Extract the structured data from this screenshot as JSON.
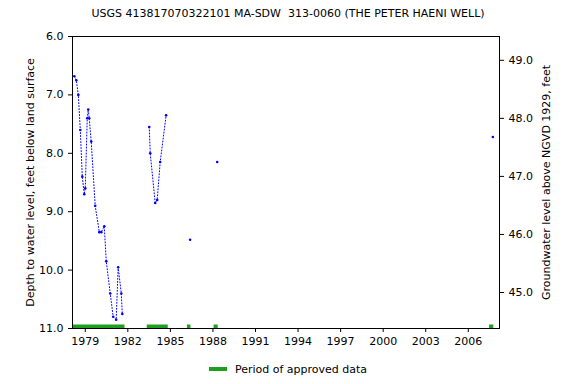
{
  "chart_data": {
    "type": "line",
    "title": "USGS 413817070322101 MA-SDW  313-0060 (THE PETER HAENI WELL)",
    "ylabel": "Depth to water level, feet below land surface",
    "y2label": "Groundwater level above NGVD 1929, feet",
    "x": [
      1978.23,
      1978.37,
      1978.51,
      1978.65,
      1978.79,
      1978.93,
      1979.0,
      1979.14,
      1979.21,
      1979.28,
      1979.42,
      1979.7,
      1979.99,
      1980.13,
      1980.34,
      1980.48,
      1980.76,
      1980.97,
      1981.18,
      1981.32,
      1981.54,
      1981.61,
      null,
      1983.51,
      1983.58,
      1983.93,
      1984.07,
      1984.28,
      1984.7,
      null,
      1986.39,
      null,
      1988.3,
      null,
      2007.73
    ],
    "values": [
      6.68,
      6.75,
      7.0,
      7.6,
      8.4,
      8.7,
      8.6,
      7.4,
      7.25,
      7.4,
      7.8,
      8.9,
      9.35,
      9.35,
      9.25,
      9.85,
      10.4,
      10.8,
      10.85,
      9.95,
      10.4,
      10.75,
      null,
      7.55,
      8.0,
      8.85,
      8.8,
      8.15,
      7.35,
      null,
      9.48,
      null,
      8.15,
      null,
      7.72
    ],
    "color": "#0000ff",
    "marker": "dot",
    "line_style": "dotted",
    "approved_periods": {
      "name": "Period of approved data",
      "color": "#1ea01e",
      "ranges": [
        [
          1978.08,
          1981.8
        ],
        [
          1983.37,
          1984.85
        ],
        [
          1986.2,
          1986.45
        ],
        [
          1988.08,
          1988.37
        ],
        [
          2007.5,
          2007.8
        ]
      ]
    },
    "xlim": [
      1978.1,
      2008.2
    ],
    "xticks": [
      1979,
      1982,
      1985,
      1988,
      1991,
      1994,
      1997,
      2000,
      2003,
      2006
    ],
    "ylim": [
      6,
      11
    ],
    "yticks": [
      {
        "value": 6,
        "label": "6.0"
      },
      {
        "value": 7,
        "label": "7.0"
      },
      {
        "value": 8,
        "label": "8.0"
      },
      {
        "value": 9,
        "label": "9.0"
      },
      {
        "value": 10,
        "label": "10.0"
      },
      {
        "value": 11,
        "label": "11.0"
      }
    ],
    "y2lim": [
      49.41,
      44.38
    ],
    "y2ticks": [
      {
        "value": 49,
        "label": "49.0"
      },
      {
        "value": 48,
        "label": "48.0"
      },
      {
        "value": 47,
        "label": "47.0"
      },
      {
        "value": 46,
        "label": "46.0"
      },
      {
        "value": 45,
        "label": "45.0"
      }
    ],
    "grid": false
  }
}
